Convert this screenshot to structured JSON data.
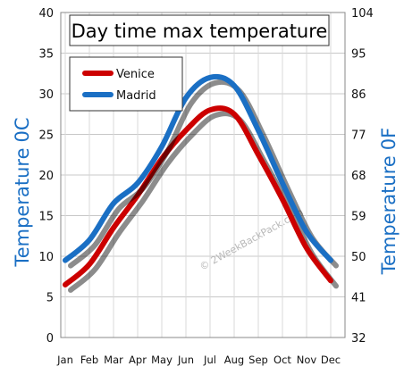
{
  "chart_data": {
    "type": "line",
    "title": "Day time max temperature",
    "categories": [
      "Jan",
      "Feb",
      "Mar",
      "Apr",
      "May",
      "Jun",
      "Jul",
      "Aug",
      "Sep",
      "Oct",
      "Nov",
      "Dec"
    ],
    "series": [
      {
        "name": "Venice",
        "color": "#cc0000",
        "values": [
          6.5,
          9,
          13.5,
          17.5,
          22,
          25.5,
          28,
          27.5,
          22.5,
          17,
          11,
          7
        ]
      },
      {
        "name": "Madrid",
        "color": "#1a6fc4",
        "values": [
          9.5,
          12,
          16.5,
          19,
          23.5,
          29.5,
          32,
          31,
          25.5,
          19,
          13,
          9.5
        ]
      }
    ],
    "ylabel_left": "Temperature",
    "ylabel_left_unit": "0C",
    "ylabel_right": "Temperature",
    "ylabel_right_unit": "0F",
    "ylim": [
      0,
      40
    ],
    "y_ticks_left": [
      "0",
      "5",
      "10",
      "15",
      "20",
      "25",
      "30",
      "35",
      "40"
    ],
    "y_ticks_right": [
      "32",
      "41",
      "50",
      "59",
      "68",
      "77",
      "86",
      "95",
      "104"
    ],
    "grid": true,
    "legend_position": "top-left"
  },
  "watermark": "© 2WeekBackPack.com"
}
